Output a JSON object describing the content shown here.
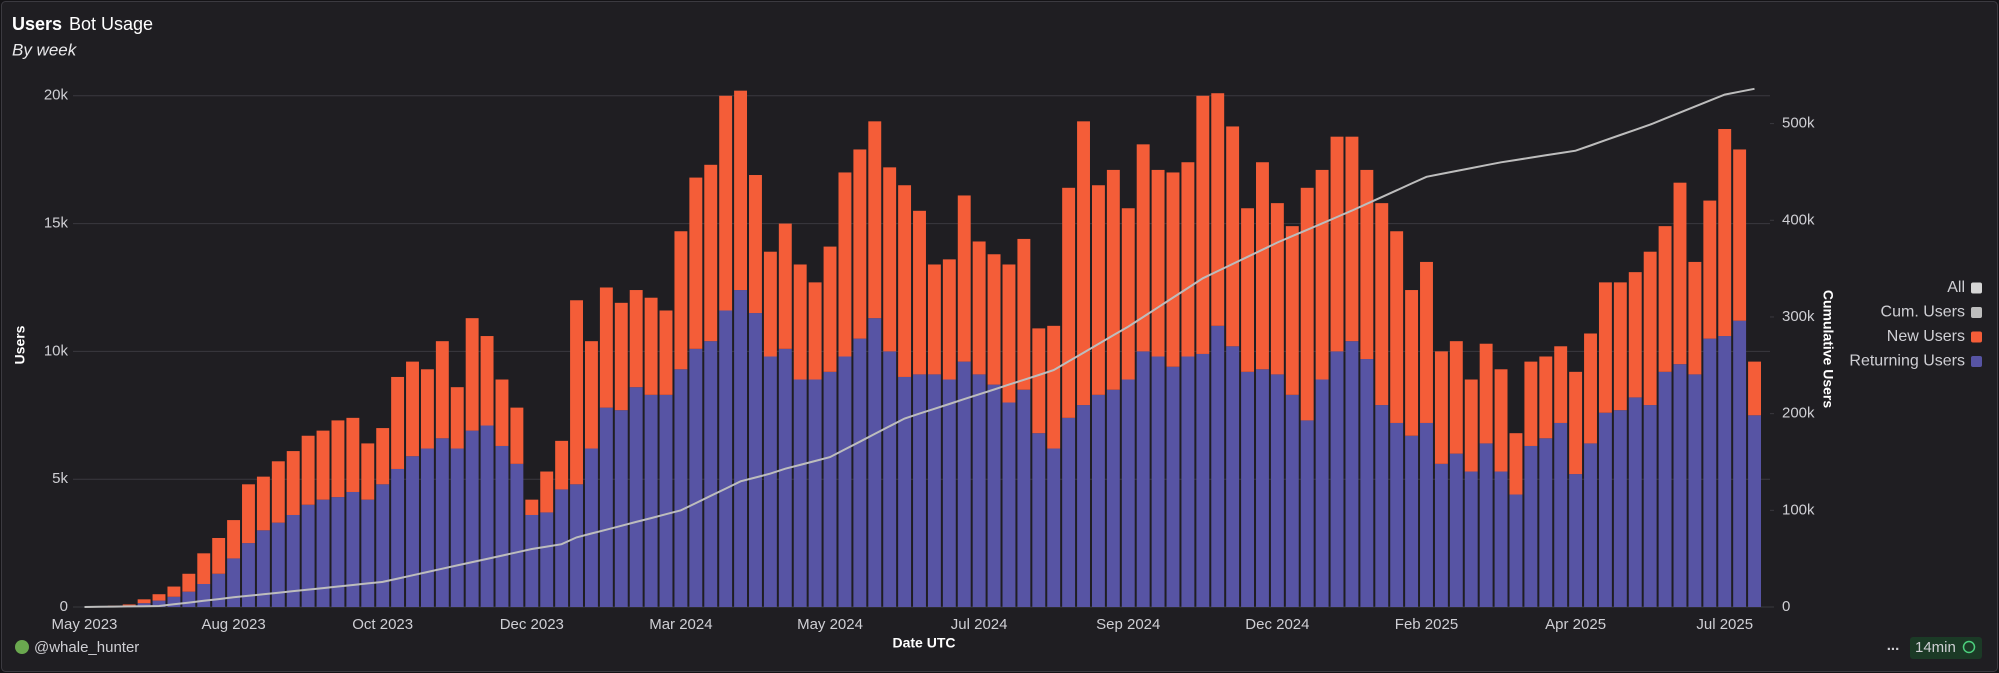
{
  "chart_data": {
    "type": "bar",
    "stacked": true,
    "title": "Users",
    "tab": "Bot Usage",
    "subtitle": "By week",
    "y_label": "Users",
    "y2_label": "Cumulative Users",
    "x_label": "Date UTC",
    "author": "@whale_hunter",
    "refresh": "14min",
    "menu": "...",
    "grid": true,
    "legend": {
      "position": "right",
      "all_label": "All",
      "all_color": "#d6d6d6"
    },
    "categories": [
      "May 2023",
      null,
      null,
      null,
      null,
      null,
      null,
      null,
      null,
      null,
      "Aug 2023",
      null,
      null,
      null,
      null,
      null,
      null,
      null,
      null,
      null,
      "Oct 2023",
      null,
      null,
      null,
      null,
      null,
      null,
      null,
      null,
      null,
      "Dec 2023",
      null,
      null,
      null,
      null,
      null,
      null,
      null,
      null,
      null,
      "Mar 2024",
      null,
      null,
      null,
      null,
      null,
      null,
      null,
      null,
      null,
      "May 2024",
      null,
      null,
      null,
      null,
      null,
      null,
      null,
      null,
      null,
      "Jul 2024",
      null,
      null,
      null,
      null,
      null,
      null,
      null,
      null,
      null,
      "Sep 2024",
      null,
      null,
      null,
      null,
      null,
      null,
      null,
      null,
      null,
      "Dec 2024",
      null,
      null,
      null,
      null,
      null,
      null,
      null,
      null,
      null,
      "Feb 2025",
      null,
      null,
      null,
      null,
      null,
      null,
      null,
      null,
      null,
      "Apr 2025",
      null,
      null,
      null,
      null,
      null,
      null,
      null,
      null,
      null,
      "Jul 2025",
      null,
      null
    ],
    "ylim": [
      0,
      20500
    ],
    "yticks": [
      0,
      {
        "value": 5000,
        "label": "5k"
      },
      {
        "value": 10000,
        "label": "10k"
      },
      {
        "value": 15000,
        "label": "15k"
      },
      {
        "value": 20000,
        "label": "20k"
      }
    ],
    "y2lim": [
      0,
      542000
    ],
    "y2ticks": [
      0,
      {
        "value": 100000,
        "label": "100k"
      },
      {
        "value": 200000,
        "label": "200k"
      },
      {
        "value": 300000,
        "label": "300k"
      },
      {
        "value": 400000,
        "label": "400k"
      },
      {
        "value": 500000,
        "label": "500k"
      }
    ],
    "series": [
      {
        "name": "Returning Users",
        "color": "#5754a4",
        "type": "bar",
        "values": [
          0,
          0,
          30,
          60,
          150,
          250,
          400,
          600,
          900,
          1300,
          1900,
          2500,
          3000,
          3300,
          3600,
          4000,
          4200,
          4300,
          4500,
          4200,
          4800,
          5400,
          5900,
          6200,
          6600,
          6200,
          6900,
          7100,
          6300,
          5600,
          3600,
          3700,
          4600,
          4800,
          6200,
          7800,
          7700,
          8600,
          8300,
          8300,
          9300,
          10100,
          10400,
          11600,
          12400,
          11500,
          9800,
          10100,
          8900,
          8900,
          9200,
          9800,
          10500,
          11300,
          10000,
          9000,
          9100,
          9100,
          8900,
          9600,
          9100,
          8700,
          8000,
          8500,
          6800,
          6200,
          7400,
          7900,
          8300,
          8500,
          8900,
          10000,
          9800,
          9400,
          9800,
          9900,
          11000,
          10200,
          9200,
          9300,
          9100,
          8300,
          7300,
          8900,
          10000,
          10400,
          9700,
          7900,
          7200,
          6700,
          7200,
          5600,
          6000,
          5300,
          6400,
          5300,
          4400,
          6300,
          6600,
          7200,
          5200,
          6400,
          7600,
          7700,
          8200,
          7900,
          9200,
          9500,
          9100,
          10500,
          10600,
          11200,
          7500
        ]
      },
      {
        "name": "New Users",
        "color": "#f45d38",
        "type": "bar",
        "values": [
          0,
          0,
          20,
          40,
          150,
          250,
          400,
          700,
          1200,
          1400,
          1500,
          2300,
          2100,
          2400,
          2500,
          2700,
          2700,
          3000,
          2900,
          2200,
          2200,
          3600,
          3700,
          3100,
          3800,
          2400,
          4400,
          3500,
          2600,
          2200,
          600,
          1600,
          1900,
          7200,
          4200,
          4700,
          4200,
          3800,
          3800,
          3300,
          5400,
          6700,
          6900,
          8400,
          7800,
          5400,
          4100,
          4900,
          4500,
          3800,
          4900,
          7200,
          7400,
          7700,
          7200,
          7500,
          6400,
          4300,
          4700,
          6500,
          5200,
          5100,
          5400,
          5900,
          4100,
          4800,
          9000,
          11100,
          8200,
          8600,
          6700,
          8100,
          7300,
          7600,
          7600,
          10100,
          9100,
          8600,
          6400,
          8100,
          6700,
          6600,
          9100,
          8200,
          8400,
          8000,
          7400,
          7900,
          7500,
          5700,
          6300,
          4400,
          4400,
          3600,
          3900,
          4000,
          2400,
          3300,
          3200,
          3000,
          4000,
          4300,
          5100,
          5000,
          4900,
          6000,
          5700,
          7100,
          4400,
          5400,
          8100,
          6700,
          2100
        ]
      },
      {
        "name": "Cum. Users",
        "color": "#bdbdbd",
        "type": "line",
        "axis": "y2",
        "values": [
          0,
          200,
          400,
          600,
          800,
          1000,
          2800,
          4600,
          6400,
          8200,
          10000,
          11600,
          13200,
          14800,
          16400,
          18000,
          19600,
          21200,
          22800,
          24400,
          26000,
          29400,
          32800,
          36200,
          39600,
          43000,
          46400,
          49800,
          53200,
          56600,
          60000,
          62500,
          65000,
          72000,
          76000,
          80000,
          84000,
          88000,
          92000,
          96000,
          100000,
          107500,
          115000,
          122500,
          130000,
          134000,
          138000,
          143000,
          147000,
          151000,
          155000,
          163000,
          171000,
          179000,
          187000,
          195000,
          200000,
          205000,
          210000,
          215000,
          220000,
          225000,
          230000,
          235000,
          240000,
          245000,
          254000,
          263000,
          272000,
          281000,
          290000,
          300000,
          310000,
          320000,
          330000,
          340000,
          347400,
          354800,
          362200,
          369600,
          377000,
          383600,
          390200,
          396800,
          403400,
          410000,
          417000,
          424000,
          431000,
          438000,
          445000,
          448000,
          451000,
          454000,
          457000,
          460000,
          462400,
          464800,
          467200,
          469600,
          472000,
          477400,
          482800,
          488200,
          493600,
          499000,
          505200,
          511400,
          517600,
          523800,
          530000,
          533000,
          536000
        ]
      }
    ]
  }
}
